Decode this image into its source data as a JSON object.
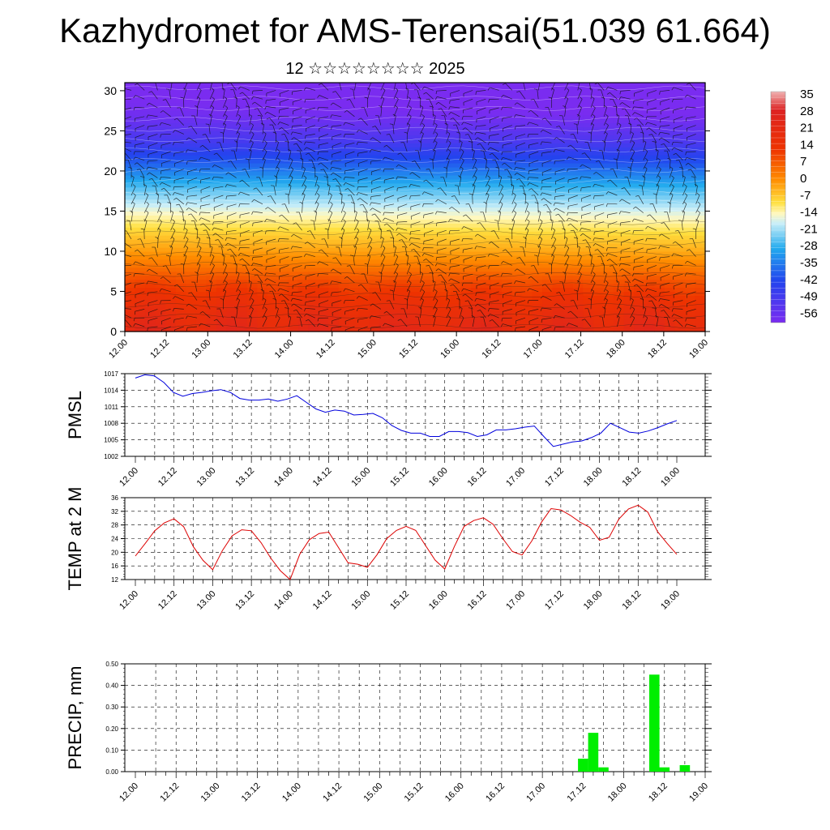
{
  "header": {
    "title": "Kazhydromet for AMS-Terensai(51.039 61.664)",
    "subtitle": "12 ☆☆☆☆☆☆☆☆ 2025"
  },
  "time_ticks": [
    "12.00",
    "12.12",
    "13.00",
    "13.12",
    "14.00",
    "14.12",
    "15.00",
    "15.12",
    "16.00",
    "16.12",
    "17.00",
    "17.12",
    "18.00",
    "18.12",
    "19.00"
  ],
  "chart_data": [
    {
      "type": "heatmap",
      "title": "",
      "xlabel": "",
      "ylabel": "",
      "x_ticks": [
        "12.00",
        "12.12",
        "13.00",
        "13.12",
        "14.00",
        "14.12",
        "15.00",
        "15.12",
        "16.00",
        "16.12",
        "17.00",
        "17.12",
        "18.00",
        "18.12",
        "19.00"
      ],
      "y_ticks": [
        0,
        5,
        10,
        15,
        20,
        25,
        30
      ],
      "ylim": [
        0,
        31
      ],
      "overlay": "wind barbs and contour lines",
      "colorbar_labels": [
        "35",
        "28",
        "21",
        "14",
        "7",
        "0",
        "-7",
        "-14",
        "-21",
        "-28",
        "-35",
        "-42",
        "-49",
        "-56"
      ],
      "colorbar_range": [
        -60,
        38
      ],
      "temperature_by_level": {
        "levels": [
          0,
          3,
          6,
          9,
          12,
          15,
          18,
          21,
          24,
          27,
          31
        ],
        "values": [
          22,
          18,
          12,
          3,
          -5,
          -14,
          -25,
          -38,
          -50,
          -58,
          -62
        ]
      }
    },
    {
      "type": "line",
      "ylabel": "PMSL",
      "ylim": [
        1002,
        1017
      ],
      "y_ticks": [
        "1017",
        "1014",
        "1011",
        "1008",
        "1005",
        "1002"
      ],
      "color": "#0000dd",
      "values": [
        1016.2,
        1016.8,
        1016.6,
        1015.4,
        1013.6,
        1012.9,
        1013.4,
        1013.6,
        1013.9,
        1014.1,
        1013.6,
        1012.5,
        1012.2,
        1012.2,
        1012.4,
        1012.0,
        1012.4,
        1013.0,
        1011.8,
        1010.6,
        1010.0,
        1010.4,
        1010.2,
        1009.5,
        1009.6,
        1009.8,
        1009.0,
        1007.6,
        1006.7,
        1006.2,
        1006.2,
        1005.6,
        1005.6,
        1006.5,
        1006.5,
        1006.3,
        1005.6,
        1005.9,
        1006.8,
        1006.8,
        1007.0,
        1007.3,
        1007.5,
        1005.6,
        1003.8,
        1004.2,
        1004.6,
        1004.8,
        1005.4,
        1006.2,
        1008.0,
        1007.2,
        1006.4,
        1006.2,
        1006.6,
        1007.2,
        1007.9,
        1008.5
      ]
    },
    {
      "type": "line",
      "ylabel": "TEMP at 2 M",
      "ylim": [
        12,
        36
      ],
      "y_ticks": [
        "36",
        "32",
        "28",
        "24",
        "20",
        "16",
        "12"
      ],
      "color": "#dd0000",
      "values": [
        18.9,
        22.5,
        26.3,
        28.6,
        29.8,
        27.5,
        21.6,
        17.6,
        14.9,
        20.5,
        24.8,
        26.6,
        26.3,
        22.8,
        18.3,
        14.6,
        12.0,
        19.4,
        23.7,
        25.5,
        25.9,
        21.4,
        16.9,
        16.5,
        15.6,
        19.3,
        24.0,
        26.4,
        27.6,
        26.4,
        22.0,
        17.7,
        15.1,
        21.7,
        27.6,
        29.3,
        30.1,
        28.2,
        24.0,
        20.2,
        19.2,
        23.3,
        28.8,
        32.8,
        32.4,
        30.8,
        28.8,
        27.3,
        23.5,
        24.4,
        29.7,
        32.7,
        33.8,
        31.8,
        26.1,
        22.6,
        19.4
      ]
    },
    {
      "type": "bar",
      "ylabel": "PRECIP, mm",
      "ylim": [
        0,
        0.5
      ],
      "y_ticks": [
        "0.50",
        "0.40",
        "0.30",
        "0.20",
        "0.10",
        "0.00"
      ],
      "color": "#00ee00",
      "values": [
        0,
        0,
        0,
        0,
        0,
        0,
        0,
        0,
        0,
        0,
        0,
        0,
        0,
        0,
        0,
        0,
        0,
        0,
        0,
        0,
        0,
        0,
        0,
        0,
        0,
        0,
        0,
        0,
        0,
        0,
        0,
        0,
        0,
        0,
        0,
        0,
        0,
        0,
        0,
        0,
        0,
        0,
        0,
        0,
        0.06,
        0.18,
        0.02,
        0,
        0,
        0,
        0,
        0.45,
        0.02,
        0,
        0.03,
        0,
        0
      ]
    }
  ]
}
